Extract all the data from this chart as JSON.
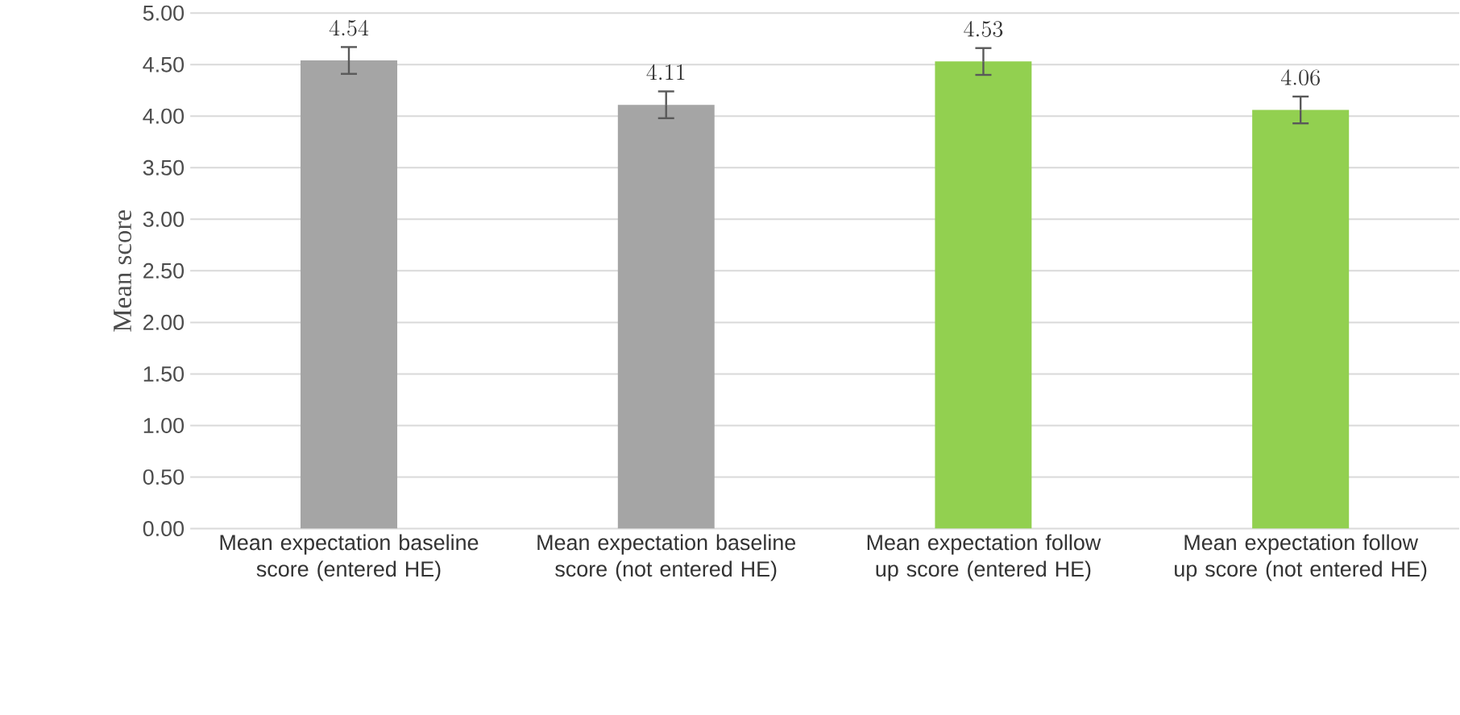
{
  "chart_data": {
    "type": "bar",
    "ylabel": "Mean score",
    "categories": [
      "Mean expectation baseline score (entered HE)",
      "Mean expectation baseline score (not entered HE)",
      "Mean expectation follow up score (entered HE)",
      "Mean expectation follow up score (not entered HE)"
    ],
    "values": [
      4.54,
      4.11,
      4.53,
      4.06
    ],
    "errors": [
      0.13,
      0.13,
      0.13,
      0.13
    ],
    "colors": [
      "#a5a5a5",
      "#a5a5a5",
      "#92d050",
      "#92d050"
    ],
    "ylim": [
      0,
      5
    ],
    "yticks": [
      {
        "value": 0,
        "label": "0.00"
      },
      {
        "value": 0.5,
        "label": "0.50"
      },
      {
        "value": 1,
        "label": "1.00"
      },
      {
        "value": 1.5,
        "label": "1.50"
      },
      {
        "value": 2,
        "label": "2.00"
      },
      {
        "value": 2.5,
        "label": "2.50"
      },
      {
        "value": 3,
        "label": "3.00"
      },
      {
        "value": 3.5,
        "label": "3.50"
      },
      {
        "value": 4,
        "label": "4.00"
      },
      {
        "value": 4.5,
        "label": "4.50"
      },
      {
        "value": 5,
        "label": "5.00"
      }
    ],
    "grid": "y",
    "data_labels": true
  }
}
